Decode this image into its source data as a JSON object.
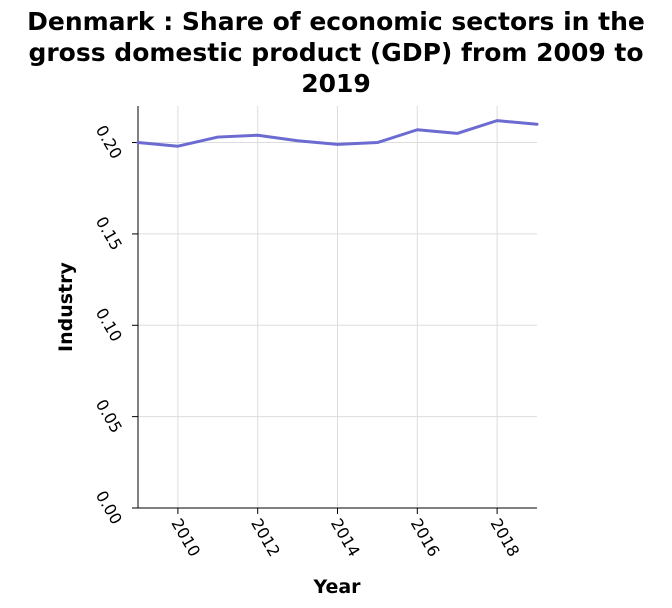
{
  "chart_data": {
    "type": "line",
    "title": "Denmark : Share of economic sectors in the gross domestic product (GDP) from 2009 to 2019",
    "xlabel": "Year",
    "ylabel": "Industry",
    "x": [
      2009,
      2010,
      2011,
      2012,
      2013,
      2014,
      2015,
      2016,
      2017,
      2018,
      2019
    ],
    "series": [
      {
        "name": "",
        "values": [
          0.2,
          0.198,
          0.203,
          0.204,
          0.201,
          0.199,
          0.2,
          0.207,
          0.205,
          0.212,
          0.21
        ],
        "color": "#6b6bd1"
      }
    ],
    "xticks": [
      "2010",
      "2012",
      "2014",
      "2016",
      "2018"
    ],
    "yticks": [
      "0.00",
      "0.05",
      "0.10",
      "0.15",
      "0.20"
    ],
    "xlim": [
      2009,
      2019
    ],
    "ylim": [
      0.0,
      0.22
    ],
    "grid": true,
    "colors": {
      "grid": "#dddddd",
      "axis": "#000000",
      "line": "#6b6bd1"
    }
  }
}
